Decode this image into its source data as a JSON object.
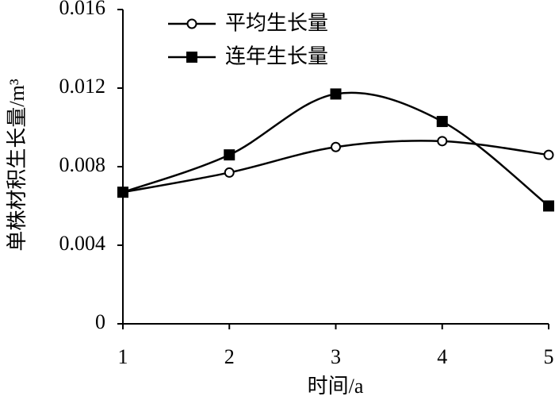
{
  "chart_data": {
    "type": "line",
    "xlabel": "时间/a",
    "ylabel": "单株材积生长量/m³",
    "x": [
      1,
      2,
      3,
      4,
      5
    ],
    "xlim": [
      1,
      5
    ],
    "xticks": [
      1,
      2,
      3,
      4,
      5
    ],
    "ylim": [
      0,
      0.016
    ],
    "yticks": [
      0,
      0.004,
      0.008,
      0.012,
      0.016
    ],
    "smooth": true,
    "series": [
      {
        "name": "平均生长量",
        "color": "#000000",
        "marker": "circle",
        "values": [
          0.0067,
          0.0077,
          0.009,
          0.0093,
          0.0086
        ]
      },
      {
        "name": "连年生长量",
        "color": "#000000",
        "marker": "square",
        "values": [
          0.0067,
          0.0086,
          0.0117,
          0.0103,
          0.006
        ]
      }
    ]
  }
}
